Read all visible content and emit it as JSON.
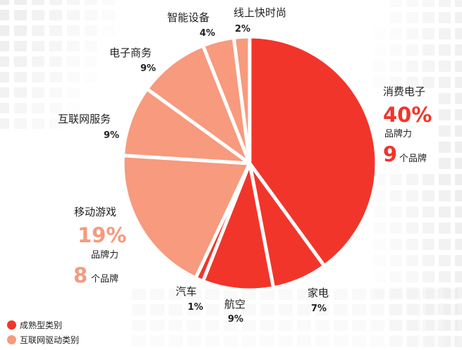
{
  "chart_data": {
    "type": "pie",
    "slices": [
      {
        "label": "消费电子",
        "value": 40,
        "value_label": "40%",
        "group": "mature"
      },
      {
        "label": "家电",
        "value": 7,
        "value_label": "7%",
        "group": "mature"
      },
      {
        "label": "航空",
        "value": 9,
        "value_label": "9%",
        "group": "mature"
      },
      {
        "label": "汽车",
        "value": 1,
        "value_label": "1%",
        "group": "mature"
      },
      {
        "label": "移动游戏",
        "value": 19,
        "value_label": "19%",
        "group": "internet"
      },
      {
        "label": "互联网服务",
        "value": 9,
        "value_label": "9%",
        "group": "internet"
      },
      {
        "label": "电子商务",
        "value": 9,
        "value_label": "9%",
        "group": "internet"
      },
      {
        "label": "智能设备",
        "value": 4,
        "value_label": "4%",
        "group": "internet"
      },
      {
        "label": "线上快时尚",
        "value": 2,
        "value_label": "2%",
        "group": "internet"
      }
    ],
    "legend": [
      {
        "key": "mature",
        "label": "成熟型类别",
        "color": "#f2352a"
      },
      {
        "key": "internet",
        "label": "互联网驱动类别",
        "color": "#f79a7d"
      }
    ],
    "legend_position": "bottom-left",
    "callouts": {
      "consumer_electronics": {
        "pct": "40%",
        "power_label": "品牌力",
        "count": "9",
        "count_label": "个品牌"
      },
      "mobile_games": {
        "pct": "19%",
        "power_label": "品牌力",
        "count": "8",
        "count_label": "个品牌"
      }
    }
  },
  "colors": {
    "mature": "#f2352a",
    "internet": "#f79a7d",
    "mature_text": "#f2352a",
    "internet_text": "#f79a7d"
  }
}
